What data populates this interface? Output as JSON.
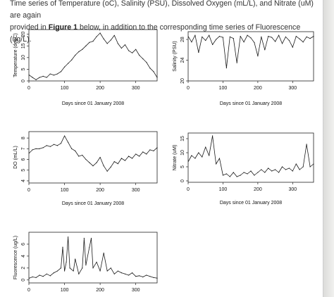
{
  "intro": {
    "line1": "Time series of Temperature (oC), Salinity (PSU), Dissolved Oxygen (mL/L), and Nitrate (uM) are again",
    "line2_start": "provided in ",
    "figure_ref": "Figure 1",
    "line2_end": " below, in addition to the corresponding time series of Fluorescence (ug/L)."
  },
  "colors": {
    "line": "#1a1a1a",
    "page": "#ffffff",
    "background": "#e9e9e7"
  },
  "chart_data": [
    {
      "type": "line",
      "ylabel": "Temperature (degC)",
      "xlabel": "Days since 01 January 2008",
      "xlim": [
        0,
        360
      ],
      "ylim": [
        0,
        22
      ],
      "x_ticks": [
        0,
        100,
        200,
        300
      ],
      "y_ticks": [
        0,
        5,
        10,
        15,
        20
      ],
      "x": [
        1,
        10,
        20,
        30,
        40,
        50,
        60,
        70,
        80,
        90,
        100,
        110,
        120,
        130,
        140,
        150,
        160,
        170,
        180,
        190,
        200,
        210,
        220,
        230,
        240,
        250,
        260,
        270,
        280,
        290,
        300,
        310,
        320,
        330,
        340,
        350,
        360
      ],
      "values": [
        2.5,
        1.5,
        0.5,
        1.5,
        2,
        1.5,
        3,
        2.5,
        3,
        4,
        6,
        7.5,
        9,
        11,
        12.5,
        13.5,
        15,
        16.5,
        17,
        19,
        20.5,
        18,
        16,
        17.5,
        19.5,
        16,
        14,
        15.5,
        13,
        12,
        13.5,
        11,
        9.5,
        8,
        5.5,
        4,
        1.5
      ]
    },
    {
      "type": "line",
      "ylabel": "Salinity (PSU)",
      "xlabel": "Days since 01 January 2008",
      "xlim": [
        0,
        360
      ],
      "ylim": [
        20,
        29.5
      ],
      "x_ticks": [
        0,
        100,
        200,
        300
      ],
      "y_ticks": [
        20,
        24,
        28
      ],
      "x": [
        1,
        10,
        20,
        30,
        40,
        50,
        60,
        70,
        80,
        90,
        100,
        110,
        120,
        130,
        140,
        150,
        160,
        170,
        180,
        190,
        200,
        210,
        220,
        230,
        240,
        250,
        260,
        270,
        280,
        290,
        300,
        310,
        320,
        330,
        340,
        350,
        360
      ],
      "values": [
        28.5,
        27.5,
        28.8,
        25.5,
        28.5,
        27.8,
        28.8,
        27,
        28,
        28.6,
        28.4,
        22.5,
        28.5,
        28.2,
        23.5,
        28.6,
        27.5,
        28.8,
        28.3,
        27.4,
        24.8,
        28.5,
        26,
        28.6,
        28.4,
        27.6,
        28.8,
        27.2,
        28.5,
        27.8,
        26.5,
        28.6,
        28.1,
        27.5,
        28.5,
        28.2,
        28.6
      ]
    },
    {
      "type": "line",
      "ylabel": "DO (mL/L)",
      "xlabel": "Days since 01 January 2008",
      "xlim": [
        0,
        360
      ],
      "ylim": [
        3.8,
        8.6
      ],
      "x_ticks": [
        0,
        100,
        200,
        300
      ],
      "y_ticks": [
        4,
        5,
        6,
        7,
        8
      ],
      "x": [
        1,
        10,
        20,
        30,
        40,
        50,
        60,
        70,
        80,
        90,
        100,
        110,
        120,
        130,
        140,
        150,
        160,
        170,
        180,
        190,
        200,
        210,
        220,
        230,
        240,
        250,
        260,
        270,
        280,
        290,
        300,
        310,
        320,
        330,
        340,
        350,
        360
      ],
      "values": [
        6.6,
        6.9,
        7.0,
        7.0,
        7.1,
        7.3,
        7.2,
        7.4,
        7.3,
        7.5,
        8.2,
        7.6,
        7.0,
        6.8,
        6.3,
        6.4,
        6.0,
        5.7,
        5.4,
        5.7,
        6.2,
        5.4,
        4.9,
        5.3,
        5.8,
        5.6,
        6.1,
        5.9,
        6.3,
        6.1,
        6.5,
        6.3,
        6.7,
        6.5,
        6.9,
        6.8,
        7.1
      ]
    },
    {
      "type": "line",
      "ylabel": "Nitrate (uM)",
      "xlabel": "Days since 01 January 2008",
      "xlim": [
        0,
        360
      ],
      "ylim": [
        -0.5,
        17
      ],
      "x_ticks": [
        0,
        100,
        200,
        300
      ],
      "y_ticks": [
        0,
        5,
        10,
        15
      ],
      "x": [
        1,
        10,
        20,
        30,
        40,
        50,
        60,
        70,
        80,
        90,
        100,
        110,
        120,
        130,
        140,
        150,
        160,
        170,
        180,
        190,
        200,
        210,
        220,
        230,
        240,
        250,
        260,
        270,
        280,
        290,
        300,
        310,
        320,
        330,
        340,
        350,
        360
      ],
      "values": [
        7,
        9,
        8,
        10,
        8.5,
        12,
        9,
        16,
        6,
        8,
        2,
        2.5,
        1.5,
        3,
        1.5,
        2,
        3,
        2.5,
        3.5,
        2,
        3,
        4,
        3,
        4.5,
        3.5,
        4,
        3,
        5,
        4,
        4.5,
        3.5,
        6,
        4,
        5,
        13,
        5,
        6
      ]
    },
    {
      "type": "line",
      "ylabel": "Fluorescence (ug/L)",
      "xlabel": "",
      "xlim": [
        0,
        360
      ],
      "ylim": [
        -0.5,
        8
      ],
      "x_ticks": [
        0,
        100,
        200,
        300
      ],
      "y_ticks": [
        0,
        2,
        4,
        6
      ],
      "x": [
        1,
        10,
        20,
        30,
        40,
        50,
        60,
        70,
        80,
        90,
        95,
        100,
        105,
        110,
        115,
        125,
        130,
        140,
        150,
        155,
        160,
        170,
        175,
        180,
        190,
        200,
        210,
        220,
        230,
        240,
        250,
        260,
        270,
        280,
        290,
        300,
        310,
        320,
        330,
        340,
        350,
        360
      ],
      "values": [
        0.3,
        0.5,
        0.4,
        0.8,
        0.6,
        1,
        0.7,
        1.2,
        1.5,
        2,
        5.5,
        1.5,
        3,
        7.2,
        2,
        1.5,
        3.5,
        1,
        2,
        7,
        2.5,
        5.5,
        7,
        2,
        3,
        1.5,
        4.5,
        1.5,
        2,
        1,
        1.5,
        1.2,
        1,
        0.8,
        1.2,
        0.6,
        0.7,
        0.5,
        0.8,
        0.6,
        0.4,
        0.3
      ]
    }
  ]
}
